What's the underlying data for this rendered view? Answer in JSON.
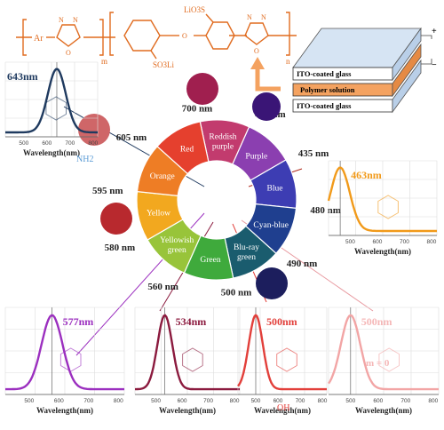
{
  "structure": {
    "color": "#e06b1f",
    "ar": "Ar",
    "m": "m",
    "n": "n",
    "li_so3": "LiO3S",
    "so3li": "SO3Li",
    "nitrogen": "N",
    "oxygen": "O"
  },
  "device": {
    "layers": [
      "ITO-coated glass",
      "Polymer solution",
      "ITO-coated glass"
    ],
    "plus": "+",
    "minus": "−"
  },
  "wheel": {
    "segments": [
      {
        "label": [
          "Reddish",
          "purple"
        ],
        "color": "#c23b6e"
      },
      {
        "label": [
          "Purple"
        ],
        "color": "#8b3fb0"
      },
      {
        "label": [
          "Blue"
        ],
        "color": "#3d3db3"
      },
      {
        "label": [
          "Cyan-blue"
        ],
        "color": "#1f3f8f"
      },
      {
        "label": [
          "Blu-ray",
          "green"
        ],
        "color": "#1a5c6e"
      },
      {
        "label": [
          "Green"
        ],
        "color": "#3faa3c"
      },
      {
        "label": [
          "Yellowish",
          "green"
        ],
        "color": "#98c43a"
      },
      {
        "label": [
          "Yellow"
        ],
        "color": "#f2a81f"
      },
      {
        "label": [
          "Orange"
        ],
        "color": "#ee7d25"
      },
      {
        "label": [
          "Red"
        ],
        "color": "#e5402e"
      }
    ],
    "boundaries": [
      "400 nm",
      "435 nm",
      "480 nm",
      "490 nm",
      "500 nm",
      "560 nm",
      "580 nm",
      "595 nm",
      "605 nm",
      "700 nm"
    ]
  },
  "swatches": {
    "colors": [
      "#a01f4f",
      "#cf6668",
      "#b8292e",
      "#3a1576",
      "#1c1e5d"
    ]
  },
  "spectra": [
    {
      "peak_label": "643nm",
      "color": "#1f3a5f",
      "peak": 643,
      "width": 55,
      "label_color": "#1f3a5f"
    },
    {
      "peak_label": "463nm",
      "color": "#f19a1a",
      "peak": 463,
      "width": 50,
      "label_color": "#f19a1a"
    },
    {
      "peak_label": "577nm",
      "color": "#9b2fbf",
      "peak": 577,
      "width": 50,
      "label_color": "#9b2fbf"
    },
    {
      "peak_label": "534nm",
      "color": "#8b1a3e",
      "peak": 534,
      "width": 40,
      "label_color": "#8b1a3e"
    },
    {
      "peak_label": "500nm",
      "color": "#e23f3a",
      "peak": 500,
      "width": 45,
      "label_color": "#e23f3a"
    },
    {
      "peak_label": "500nm",
      "color": "#f2a5a5",
      "peak": 500,
      "width": 50,
      "label_color": "#f5b7b7"
    }
  ],
  "spectrum_common": {
    "xlabel": "Wavelength(nm)",
    "ticks": [
      "500",
      "600",
      "700",
      "800"
    ]
  },
  "substituents": {
    "nh2": "NH2",
    "oh": "OH",
    "m_zero": "m = 0"
  }
}
